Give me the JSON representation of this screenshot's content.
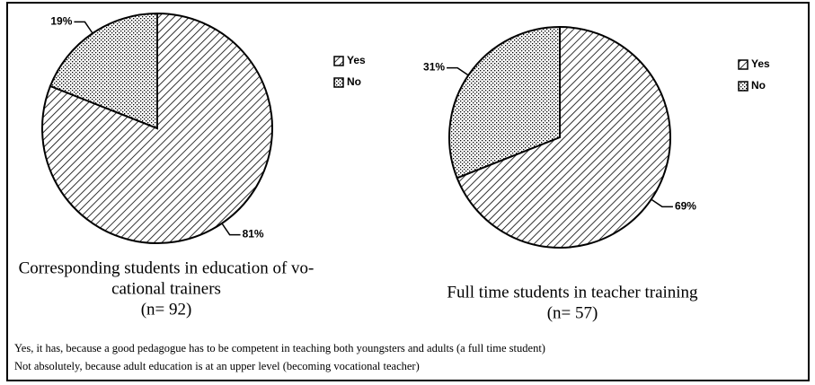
{
  "chart_data": [
    {
      "type": "pie",
      "categories": [
        "Yes",
        "No"
      ],
      "values": [
        81,
        19
      ],
      "value_labels": [
        "81%",
        "19%"
      ],
      "caption": [
        "Corresponding students in education of vo-",
        "cational trainers",
        "(n= 92)"
      ],
      "legend": "upper right"
    },
    {
      "type": "pie",
      "categories": [
        "Yes",
        "No"
      ],
      "values": [
        69,
        31
      ],
      "value_labels": [
        "69%",
        "31%"
      ],
      "caption": [
        "Full time students in teacher training",
        "(n= 57)"
      ],
      "legend": "upper right"
    }
  ],
  "notes": [
    "Yes, it has, because a good pedagogue has to be competent in teaching both youngsters and adults (a full time student)",
    "Not absolutely, because adult education is at an upper level (becoming vocational teacher)"
  ]
}
